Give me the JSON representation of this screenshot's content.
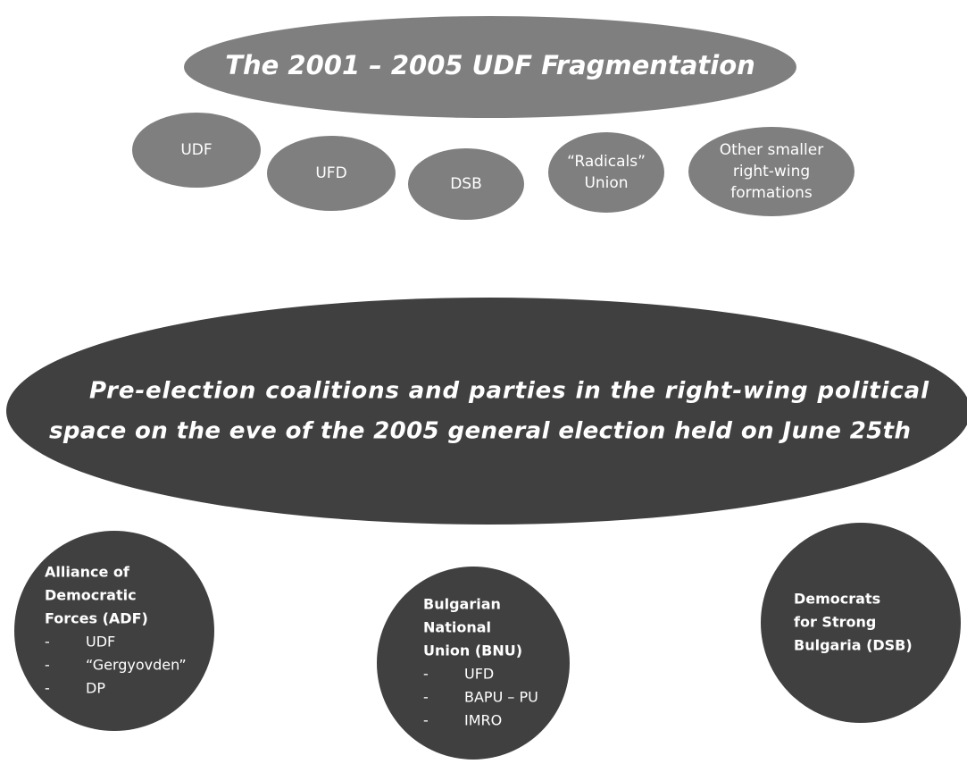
{
  "header": {
    "title": "The 2001 – 2005 UDF Fragmentation"
  },
  "parties": [
    {
      "lines": [
        "UDF"
      ]
    },
    {
      "lines": [
        "UFD"
      ]
    },
    {
      "lines": [
        "DSB"
      ]
    },
    {
      "lines": [
        "“Radicals”",
        "Union"
      ]
    },
    {
      "lines": [
        "Other smaller",
        "right-wing",
        "formations"
      ]
    }
  ],
  "coalitions_heading": {
    "lines": [
      "Pre-election coalitions and parties in the right-wing political",
      "space on the eve of the 2005 general election held on June 25th"
    ]
  },
  "bullet": "-",
  "coalitions": [
    {
      "name_lines": [
        "Alliance of",
        "Democratic",
        "Forces (ADF)"
      ],
      "members": [
        "UDF",
        "“Gergyovden”",
        "DP"
      ]
    },
    {
      "name_lines": [
        "Bulgarian",
        "National",
        "Union (BNU)"
      ],
      "members": [
        "UFD",
        "BAPU – PU",
        "IMRO"
      ]
    },
    {
      "name_lines": [
        "Democrats",
        "for Strong",
        "Bulgaria (DSB)"
      ],
      "members": []
    }
  ]
}
